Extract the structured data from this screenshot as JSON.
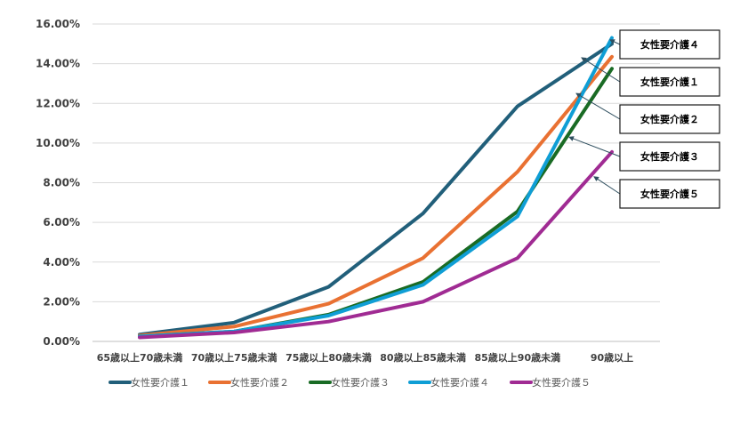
{
  "chart_data": {
    "type": "line",
    "categories": [
      "65歳以上70歳未満",
      "70歳以上75歳未満",
      "75歳以上80歳未満",
      "80歳以上85歳未満",
      "85歳以上90歳未満",
      "90歳以上"
    ],
    "ylim": [
      0,
      16
    ],
    "yticks": [
      "0.00%",
      "2.00%",
      "4.00%",
      "6.00%",
      "8.00%",
      "10.00%",
      "12.00%",
      "14.00%",
      "16.00%"
    ],
    "grid": true,
    "legend": "bottom",
    "series": [
      {
        "name": "女性要介護１",
        "color": "#215F7A",
        "values": [
          0.35,
          0.95,
          2.75,
          6.45,
          11.85,
          15.0
        ]
      },
      {
        "name": "女性要介護２",
        "color": "#E97132",
        "values": [
          0.3,
          0.75,
          1.9,
          4.2,
          8.55,
          14.35
        ]
      },
      {
        "name": "女性要介護３",
        "color": "#196B24",
        "values": [
          0.25,
          0.5,
          1.35,
          3.0,
          6.55,
          13.75
        ]
      },
      {
        "name": "女性要介護４",
        "color": "#0F9ED5",
        "values": [
          0.25,
          0.5,
          1.3,
          2.85,
          6.3,
          15.3
        ]
      },
      {
        "name": "女性要介護５",
        "color": "#A02B93",
        "values": [
          0.2,
          0.45,
          1.0,
          2.0,
          4.2,
          9.55
        ]
      }
    ],
    "callouts": [
      "女性要介護４",
      "女性要介護１",
      "女性要介護２",
      "女性要介護３",
      "女性要介護５"
    ]
  }
}
